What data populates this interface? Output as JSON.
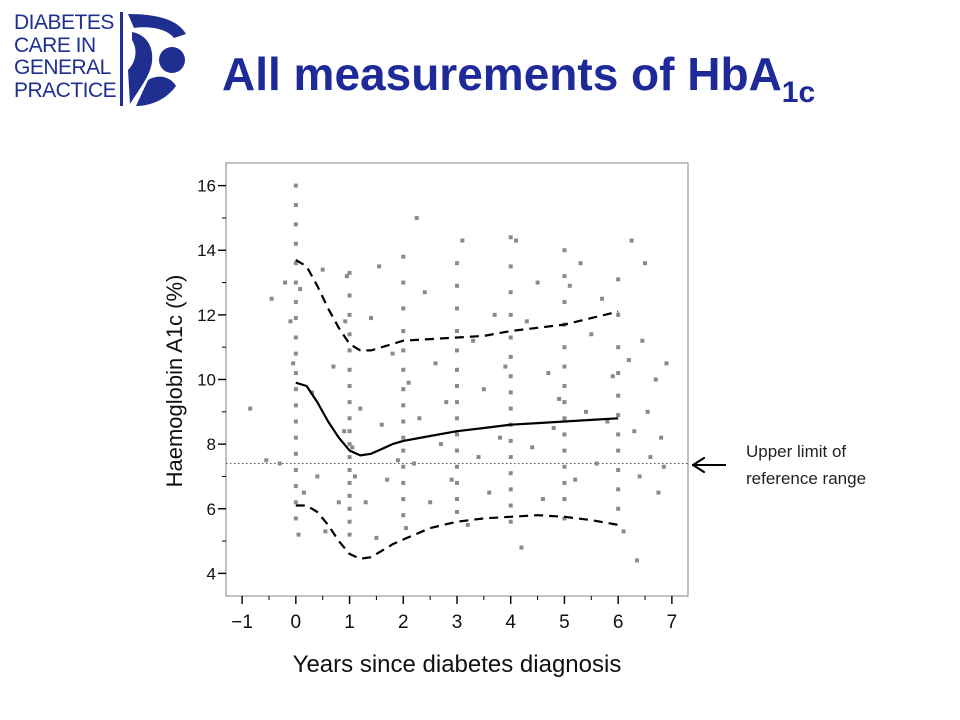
{
  "slide": {
    "logo_lines": [
      "DIABETES",
      "CARE IN",
      "GENERAL",
      "PRACTICE"
    ],
    "title_main": "All measurements of HbA",
    "title_sub": "1c",
    "annotation_lines": [
      "Upper limit of",
      "reference range"
    ],
    "colors": {
      "title": "#1f2a9a",
      "logo": "#1f2f8f",
      "points": "#8a8a8a"
    },
    "icons": [
      "logo-mark-icon",
      "arrow-left-icon"
    ]
  },
  "chart_data": {
    "type": "scatter",
    "title": "",
    "xlabel": "Years since diabetes diagnosis",
    "ylabel": "Haemoglobin A1c (%)",
    "xlim": [
      -1.3,
      7.3
    ],
    "ylim": [
      3.3,
      16.7
    ],
    "xticks": [
      -1,
      0,
      1,
      2,
      3,
      4,
      5,
      6,
      7
    ],
    "xtick_labels": [
      "−1",
      "0",
      "1",
      "2",
      "3",
      "4",
      "5",
      "6",
      "7"
    ],
    "yticks": [
      4,
      6,
      8,
      10,
      12,
      14,
      16
    ],
    "ytick_labels": [
      "4",
      "6",
      "8",
      "10",
      "12",
      "14",
      "16"
    ],
    "grid": false,
    "reference_line": {
      "y": 7.4,
      "style": "dotted"
    },
    "point_color": "#8a8a8a",
    "lines": [
      {
        "style": "solid",
        "x": [
          0,
          0.2,
          0.4,
          0.6,
          0.8,
          1.0,
          1.2,
          1.4,
          1.6,
          1.8,
          2.0,
          2.5,
          3.0,
          3.5,
          4.0,
          4.5,
          5.0,
          5.5,
          6.0
        ],
        "y": [
          9.9,
          9.8,
          9.3,
          8.7,
          8.2,
          7.8,
          7.65,
          7.7,
          7.85,
          8.0,
          8.1,
          8.25,
          8.4,
          8.5,
          8.6,
          8.65,
          8.7,
          8.75,
          8.8
        ]
      },
      {
        "style": "dashed",
        "x": [
          0,
          0.2,
          0.4,
          0.6,
          0.8,
          1.0,
          1.2,
          1.4,
          1.6,
          1.8,
          2.0,
          2.5,
          3.0,
          3.5,
          4.0,
          4.5,
          5.0,
          5.5,
          6.0
        ],
        "y": [
          13.7,
          13.5,
          12.9,
          12.2,
          11.6,
          11.1,
          10.9,
          10.9,
          11.0,
          11.1,
          11.2,
          11.25,
          11.3,
          11.35,
          11.5,
          11.6,
          11.7,
          11.9,
          12.1
        ]
      },
      {
        "style": "dashed",
        "x": [
          0,
          0.2,
          0.4,
          0.6,
          0.8,
          1.0,
          1.2,
          1.4,
          1.6,
          1.8,
          2.0,
          2.5,
          3.0,
          3.5,
          4.0,
          4.5,
          5.0,
          5.5,
          6.0
        ],
        "y": [
          6.1,
          6.1,
          5.9,
          5.5,
          5.0,
          4.6,
          4.45,
          4.5,
          4.7,
          4.9,
          5.05,
          5.4,
          5.6,
          5.7,
          5.75,
          5.8,
          5.75,
          5.65,
          5.5
        ]
      }
    ],
    "points": [
      [
        -0.85,
        9.1
      ],
      [
        -0.55,
        7.5
      ],
      [
        -0.45,
        12.5
      ],
      [
        -0.3,
        7.4
      ],
      [
        -0.2,
        13.0
      ],
      [
        -0.1,
        11.8
      ],
      [
        0,
        16.0
      ],
      [
        0,
        15.4
      ],
      [
        0,
        14.8
      ],
      [
        0,
        14.2
      ],
      [
        0,
        13.6
      ],
      [
        0,
        13.0
      ],
      [
        0,
        12.4
      ],
      [
        0,
        11.9
      ],
      [
        0,
        11.3
      ],
      [
        0,
        10.8
      ],
      [
        0,
        10.2
      ],
      [
        0,
        9.7
      ],
      [
        0,
        9.2
      ],
      [
        0,
        8.7
      ],
      [
        0,
        8.2
      ],
      [
        0,
        7.7
      ],
      [
        0,
        7.2
      ],
      [
        0,
        6.7
      ],
      [
        0,
        6.2
      ],
      [
        0,
        5.7
      ],
      [
        0.05,
        5.2
      ],
      [
        -0.05,
        10.5
      ],
      [
        0.08,
        12.8
      ],
      [
        0.15,
        6.5
      ],
      [
        0.3,
        9.6
      ],
      [
        0.4,
        7.0
      ],
      [
        0.5,
        13.4
      ],
      [
        0.55,
        5.3
      ],
      [
        0.7,
        10.4
      ],
      [
        0.8,
        6.2
      ],
      [
        0.9,
        8.4
      ],
      [
        0.92,
        11.8
      ],
      [
        0.95,
        13.2
      ],
      [
        1,
        13.3
      ],
      [
        1,
        12.6
      ],
      [
        1,
        12.0
      ],
      [
        1,
        11.4
      ],
      [
        1,
        10.9
      ],
      [
        1,
        10.3
      ],
      [
        1,
        9.8
      ],
      [
        1,
        9.3
      ],
      [
        1,
        8.8
      ],
      [
        1,
        8.4
      ],
      [
        1,
        8.0
      ],
      [
        1,
        7.6
      ],
      [
        1,
        7.2
      ],
      [
        1,
        6.8
      ],
      [
        1,
        6.4
      ],
      [
        1,
        6.0
      ],
      [
        1,
        5.6
      ],
      [
        1,
        5.2
      ],
      [
        1.05,
        7.9
      ],
      [
        1.1,
        7.0
      ],
      [
        1.2,
        9.1
      ],
      [
        1.3,
        6.2
      ],
      [
        1.4,
        11.9
      ],
      [
        1.5,
        5.1
      ],
      [
        1.55,
        13.5
      ],
      [
        1.6,
        8.6
      ],
      [
        1.7,
        6.9
      ],
      [
        1.8,
        10.8
      ],
      [
        1.9,
        7.5
      ],
      [
        2,
        13.8
      ],
      [
        2,
        13.0
      ],
      [
        2,
        12.2
      ],
      [
        2,
        11.5
      ],
      [
        2,
        10.9
      ],
      [
        2,
        10.3
      ],
      [
        2,
        9.7
      ],
      [
        2,
        9.2
      ],
      [
        2,
        8.7
      ],
      [
        2,
        8.2
      ],
      [
        2,
        7.8
      ],
      [
        2,
        7.3
      ],
      [
        2,
        6.8
      ],
      [
        2,
        6.3
      ],
      [
        2,
        5.8
      ],
      [
        2.05,
        5.4
      ],
      [
        2.1,
        9.9
      ],
      [
        2.2,
        7.4
      ],
      [
        2.25,
        15.0
      ],
      [
        2.3,
        8.8
      ],
      [
        2.4,
        12.7
      ],
      [
        2.5,
        6.2
      ],
      [
        2.6,
        10.5
      ],
      [
        2.7,
        8.0
      ],
      [
        2.8,
        9.3
      ],
      [
        2.9,
        6.9
      ],
      [
        3,
        13.6
      ],
      [
        3,
        12.9
      ],
      [
        3,
        12.2
      ],
      [
        3,
        11.5
      ],
      [
        3,
        10.9
      ],
      [
        3,
        10.3
      ],
      [
        3,
        9.8
      ],
      [
        3,
        9.3
      ],
      [
        3,
        8.8
      ],
      [
        3,
        8.3
      ],
      [
        3,
        7.8
      ],
      [
        3,
        7.3
      ],
      [
        3,
        6.8
      ],
      [
        3,
        6.3
      ],
      [
        3,
        5.9
      ],
      [
        3.1,
        14.3
      ],
      [
        3.2,
        5.5
      ],
      [
        3.3,
        11.2
      ],
      [
        3.4,
        7.6
      ],
      [
        3.5,
        9.7
      ],
      [
        3.6,
        6.5
      ],
      [
        3.7,
        12.0
      ],
      [
        3.8,
        8.2
      ],
      [
        3.9,
        10.4
      ],
      [
        4,
        14.4
      ],
      [
        4,
        13.5
      ],
      [
        4,
        12.7
      ],
      [
        4,
        12.0
      ],
      [
        4,
        11.3
      ],
      [
        4,
        10.7
      ],
      [
        4,
        10.1
      ],
      [
        4,
        9.6
      ],
      [
        4,
        9.1
      ],
      [
        4,
        8.6
      ],
      [
        4,
        8.1
      ],
      [
        4,
        7.6
      ],
      [
        4,
        7.1
      ],
      [
        4,
        6.6
      ],
      [
        4,
        6.1
      ],
      [
        4,
        5.6
      ],
      [
        4.1,
        14.3
      ],
      [
        4.2,
        4.8
      ],
      [
        4.3,
        11.8
      ],
      [
        4.4,
        7.9
      ],
      [
        4.5,
        13.0
      ],
      [
        4.6,
        6.3
      ],
      [
        4.7,
        10.2
      ],
      [
        4.8,
        8.5
      ],
      [
        4.9,
        9.4
      ],
      [
        5,
        14.0
      ],
      [
        5,
        13.2
      ],
      [
        5,
        12.4
      ],
      [
        5,
        11.7
      ],
      [
        5,
        11.0
      ],
      [
        5,
        10.4
      ],
      [
        5,
        9.8
      ],
      [
        5,
        9.3
      ],
      [
        5,
        8.8
      ],
      [
        5,
        8.3
      ],
      [
        5,
        7.8
      ],
      [
        5,
        7.3
      ],
      [
        5,
        6.8
      ],
      [
        5,
        6.3
      ],
      [
        5,
        5.7
      ],
      [
        5.1,
        12.9
      ],
      [
        5.2,
        6.9
      ],
      [
        5.3,
        13.6
      ],
      [
        5.4,
        9.0
      ],
      [
        5.5,
        11.4
      ],
      [
        5.6,
        7.4
      ],
      [
        5.7,
        12.5
      ],
      [
        5.8,
        8.7
      ],
      [
        5.9,
        10.1
      ],
      [
        6,
        13.1
      ],
      [
        6,
        12.0
      ],
      [
        6,
        11.0
      ],
      [
        6,
        10.2
      ],
      [
        6,
        9.5
      ],
      [
        6,
        8.9
      ],
      [
        6,
        8.3
      ],
      [
        6,
        7.8
      ],
      [
        6,
        7.2
      ],
      [
        6,
        6.6
      ],
      [
        6,
        6.0
      ],
      [
        6.1,
        5.3
      ],
      [
        6.2,
        10.6
      ],
      [
        6.25,
        14.3
      ],
      [
        6.3,
        8.4
      ],
      [
        6.35,
        4.4
      ],
      [
        6.4,
        7.0
      ],
      [
        6.45,
        11.2
      ],
      [
        6.5,
        13.6
      ],
      [
        6.55,
        9.0
      ],
      [
        6.6,
        7.6
      ],
      [
        6.7,
        10.0
      ],
      [
        6.75,
        6.5
      ],
      [
        6.8,
        8.2
      ],
      [
        6.85,
        7.3
      ],
      [
        6.9,
        10.5
      ]
    ]
  }
}
